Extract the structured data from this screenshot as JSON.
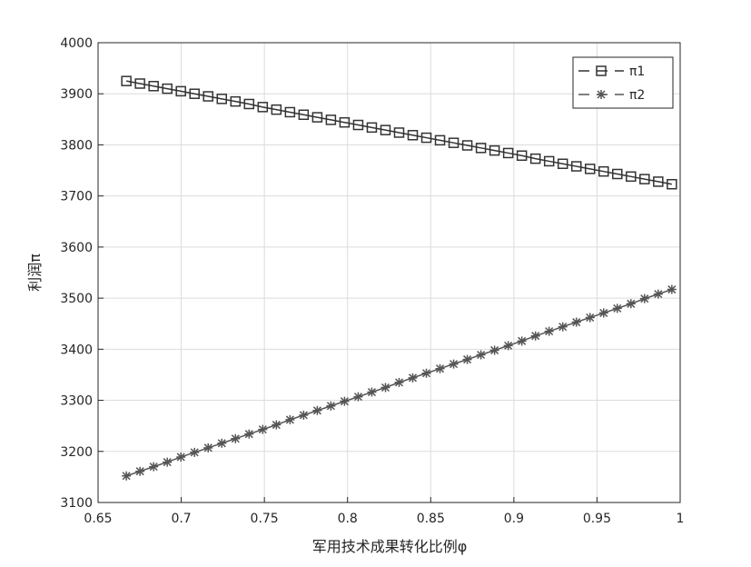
{
  "chart_data": {
    "type": "line",
    "x_label": "军用技术成果转化比例φ",
    "y_label": "利润π",
    "x": [
      0.667,
      0.6752,
      0.6834,
      0.6916,
      0.6998,
      0.708,
      0.7162,
      0.7244,
      0.7326,
      0.7408,
      0.749,
      0.7572,
      0.7654,
      0.7736,
      0.7818,
      0.79,
      0.7982,
      0.8064,
      0.8146,
      0.8228,
      0.831,
      0.8392,
      0.8474,
      0.8556,
      0.8638,
      0.872,
      0.8802,
      0.8884,
      0.8966,
      0.9048,
      0.913,
      0.9212,
      0.9294,
      0.9376,
      0.9458,
      0.954,
      0.9622,
      0.9704,
      0.9786,
      0.9868,
      0.995
    ],
    "series": [
      {
        "name": "π1",
        "color": "#333333",
        "marker": "square",
        "values": [
          3925,
          3920,
          3915,
          3910,
          3905,
          3900,
          3895,
          3890,
          3885,
          3880,
          3874,
          3869,
          3864,
          3859,
          3854,
          3849,
          3844,
          3839,
          3834,
          3829,
          3824,
          3819,
          3814,
          3809,
          3804,
          3799,
          3794,
          3789,
          3784,
          3779,
          3773,
          3768,
          3763,
          3758,
          3753,
          3748,
          3743,
          3738,
          3733,
          3728,
          3723
        ]
      },
      {
        "name": "π2",
        "color": "#555555",
        "marker": "asterisk",
        "values": [
          3152,
          3161,
          3170,
          3179,
          3189,
          3198,
          3207,
          3216,
          3225,
          3234,
          3243,
          3252,
          3262,
          3271,
          3280,
          3289,
          3298,
          3307,
          3316,
          3325,
          3335,
          3344,
          3353,
          3362,
          3371,
          3380,
          3389,
          3398,
          3407,
          3416,
          3426,
          3435,
          3444,
          3453,
          3462,
          3471,
          3480,
          3489,
          3499,
          3508,
          3517
        ]
      }
    ],
    "xlim": [
      0.65,
      1
    ],
    "xticks": [
      0.65,
      0.7,
      0.75,
      0.8,
      0.85,
      0.9,
      0.95,
      1
    ],
    "ylim": [
      3100,
      4000
    ],
    "yticks": [
      3100,
      3200,
      3300,
      3400,
      3500,
      3600,
      3700,
      3800,
      3900,
      4000
    ],
    "grid": true,
    "legend": "top-right"
  }
}
